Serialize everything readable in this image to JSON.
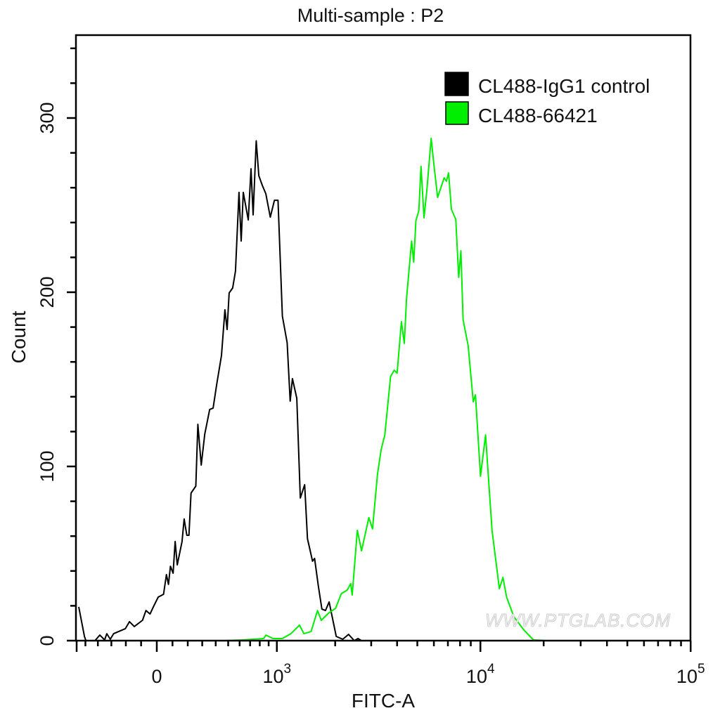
{
  "chart_data": {
    "type": "line",
    "title": "Multi-sample : P2",
    "xlabel": "FITC-A",
    "ylabel": "Count",
    "x_scale": "biexponential",
    "xlim": [
      -580,
      100000
    ],
    "ylim": [
      0,
      348
    ],
    "grid": false,
    "legend_position": "top-right",
    "y_ticks": [
      0,
      100,
      200,
      300
    ],
    "y_tick_labels": [
      "0",
      "100",
      "200",
      "300"
    ],
    "y_minor_step": 20,
    "x_ticks": [
      {
        "value": 0,
        "base": "0",
        "exp": ""
      },
      {
        "value": 1000,
        "base": "10",
        "exp": "3"
      },
      {
        "value": 10000,
        "base": "10",
        "exp": "4"
      },
      {
        "value": 100000,
        "base": "10",
        "exp": "5"
      }
    ],
    "x_minor_ticks": [
      -600,
      -500,
      -400,
      -300,
      -200,
      -100,
      100,
      200,
      300,
      400,
      500,
      600,
      700,
      800,
      900,
      2000,
      3000,
      4000,
      5000,
      6000,
      7000,
      8000,
      9000,
      20000,
      30000,
      40000,
      50000,
      60000,
      70000,
      80000,
      90000
    ],
    "watermark": "WWW.PTGLAB.COM",
    "series": [
      {
        "name": "CL488-IgG1 control",
        "color": "#000000",
        "x": [
          -557,
          -508,
          -496,
          -423,
          -385,
          -349,
          -333,
          -308,
          -284,
          -203,
          -176,
          -144,
          -91,
          -69,
          -43,
          -22,
          9,
          43,
          61,
          74,
          87,
          104,
          117,
          131,
          162,
          176,
          194,
          208,
          222,
          255,
          269,
          293,
          318,
          354,
          380,
          407,
          445,
          473,
          491,
          508,
          538,
          563,
          594,
          614,
          634,
          682,
          709,
          730,
          762,
          790,
          828,
          868,
          919,
          970,
          1015,
          1072,
          1137,
          1180,
          1213,
          1278,
          1333,
          1404,
          1452,
          1540,
          1578,
          1647,
          1717,
          1790,
          1866,
          2024,
          2181,
          2327,
          2484,
          2588,
          2694
        ],
        "y": [
          19.4,
          2.4,
          0,
          0,
          3.2,
          0.4,
          4,
          0.8,
          4,
          6.9,
          10.9,
          8.1,
          11.7,
          17.3,
          15.3,
          19.4,
          25,
          26.6,
          37.9,
          32.3,
          42.7,
          38.7,
          56.9,
          43.5,
          56.9,
          69.8,
          60.5,
          60.5,
          84.7,
          88.7,
          124.2,
          100.8,
          118.5,
          132.7,
          133.5,
          146.8,
          163.7,
          189.9,
          178.6,
          199.6,
          202.4,
          212.1,
          257.3,
          229.4,
          257.3,
          241.5,
          270.9,
          244.4,
          286.9,
          266.9,
          261.3,
          256.5,
          243.1,
          252.8,
          252.8,
          186.3,
          171,
          137.5,
          150.4,
          139.1,
          81.9,
          89.5,
          58.5,
          45.6,
          47.2,
          31.5,
          18.1,
          17.3,
          22.2,
          2.4,
          0.8,
          3.6,
          0,
          1.2,
          0
        ]
      },
      {
        "name": "CL488-66421",
        "color": "#00ee00",
        "x": [
          255,
          462,
          627,
          844,
          868,
          952,
          1072,
          1190,
          1321,
          1391,
          1514,
          1633,
          1704,
          1850,
          2008,
          2145,
          2291,
          2384,
          2425,
          2568,
          2693,
          2923,
          3044,
          3219,
          3351,
          3491,
          3720,
          3873,
          4002,
          4196,
          4332,
          4439,
          4693,
          4805,
          4924,
          5085,
          5208,
          5380,
          5549,
          5822,
          6013,
          6252,
          6719,
          6885,
          7054,
          7277,
          7634,
          7883,
          8073,
          8266,
          8741,
          9246,
          9470,
          10009,
          10585,
          10927,
          11363,
          12310,
          12800,
          13323,
          14425,
          16130,
          17886,
          20470
        ],
        "y": [
          0,
          0,
          0.4,
          1.2,
          3.2,
          1.2,
          1.2,
          4,
          8.9,
          4,
          5.2,
          17.3,
          11.7,
          15.7,
          18.5,
          27,
          29,
          32.7,
          26.2,
          63.3,
          51.6,
          70.6,
          64.1,
          95.6,
          109.7,
          118.1,
          151.6,
          155.2,
          153.6,
          183.1,
          170.6,
          196.4,
          229.4,
          217.3,
          241.1,
          246.8,
          272.2,
          242.7,
          258.1,
          288.3,
          272.2,
          254.4,
          265.7,
          263.7,
          268.5,
          247.6,
          241.9,
          208.5,
          223.8,
          184.3,
          169.4,
          137.1,
          141.1,
          94.4,
          118.1,
          93.5,
          63.3,
          29.8,
          36.3,
          25,
          13.7,
          6,
          0.4,
          0
        ]
      }
    ]
  }
}
